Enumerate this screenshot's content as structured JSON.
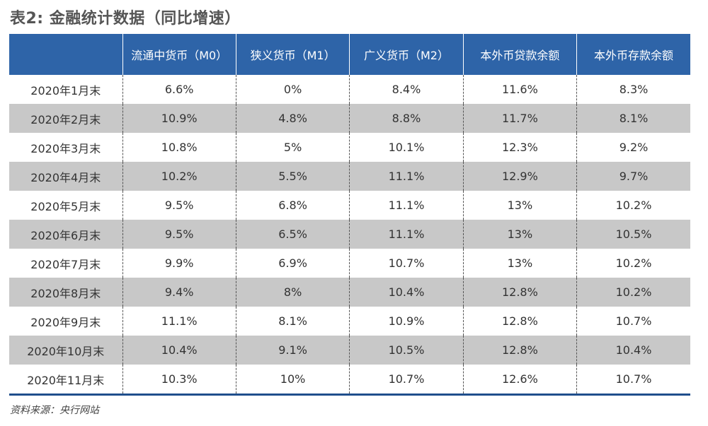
{
  "title": "表2: 金融统计数据（同比增速）",
  "table": {
    "headers": [
      "",
      "流通中货币（M0）",
      "狭义货币（M1）",
      "广义货币（M2）",
      "本外币贷款余额",
      "本外币存款余额"
    ],
    "rows": [
      [
        "2020年1月末",
        "6.6%",
        "0%",
        "8.4%",
        "11.6%",
        "8.3%"
      ],
      [
        "2020年2月末",
        "10.9%",
        "4.8%",
        "8.8%",
        "11.7%",
        "8.1%"
      ],
      [
        "2020年3月末",
        "10.8%",
        "5%",
        "10.1%",
        "12.3%",
        "9.2%"
      ],
      [
        "2020年4月末",
        "10.2%",
        "5.5%",
        "11.1%",
        "12.9%",
        "9.7%"
      ],
      [
        "2020年5月末",
        "9.5%",
        "6.8%",
        "11.1%",
        "13%",
        "10.2%"
      ],
      [
        "2020年6月末",
        "9.5%",
        "6.5%",
        "11.1%",
        "13%",
        "10.5%"
      ],
      [
        "2020年7月末",
        "9.9%",
        "6.9%",
        "10.7%",
        "13%",
        "10.2%"
      ],
      [
        "2020年8月末",
        "9.4%",
        "8%",
        "10.4%",
        "12.8%",
        "10.2%"
      ],
      [
        "2020年9月末",
        "11.1%",
        "8.1%",
        "10.9%",
        "12.8%",
        "10.7%"
      ],
      [
        "2020年10月末",
        "10.4%",
        "9.1%",
        "10.5%",
        "12.8%",
        "10.4%"
      ],
      [
        "2020年11月末",
        "10.3%",
        "10%",
        "10.7%",
        "12.6%",
        "10.7%"
      ]
    ]
  },
  "source": "资料来源：央行网站",
  "colors": {
    "header_bg": "#2e64a8",
    "stripe_bg": "#c8c8c8",
    "rule": "#1f4e8c"
  }
}
